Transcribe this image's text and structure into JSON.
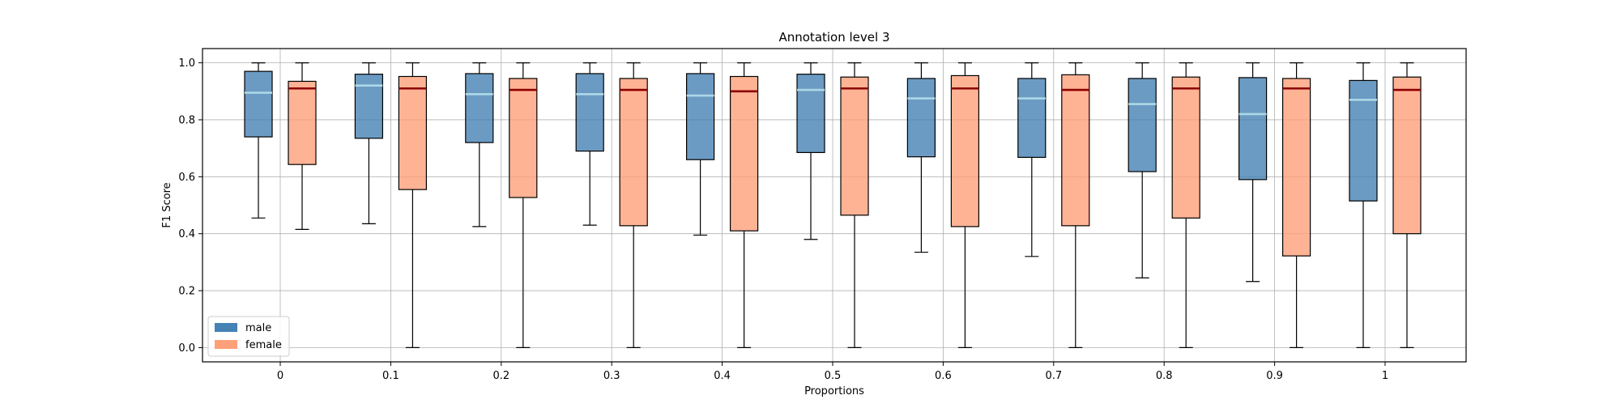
{
  "chart_data": {
    "type": "boxplot",
    "title": "Annotation level 3",
    "xlabel": "Proportions",
    "ylabel": "F1 Score",
    "ylim": [
      -0.05,
      1.05
    ],
    "yticks": [
      0.0,
      0.2,
      0.4,
      0.6,
      0.8,
      1.0
    ],
    "ytick_labels": [
      "0.0",
      "0.2",
      "0.4",
      "0.6",
      "0.8",
      "1.0"
    ],
    "categories": [
      "0",
      "0.1",
      "0.2",
      "0.3",
      "0.4",
      "0.5",
      "0.6",
      "0.7",
      "0.8",
      "0.9",
      "1"
    ],
    "grid": true,
    "legend_position": "lower-left",
    "series": [
      {
        "name": "male",
        "color": "#4682b4",
        "median_color": "#add8e6",
        "boxes": [
          {
            "whislo": 0.455,
            "q1": 0.74,
            "med": 0.895,
            "q3": 0.97,
            "whishi": 1.0
          },
          {
            "whislo": 0.435,
            "q1": 0.735,
            "med": 0.92,
            "q3": 0.96,
            "whishi": 1.0
          },
          {
            "whislo": 0.425,
            "q1": 0.72,
            "med": 0.89,
            "q3": 0.962,
            "whishi": 1.0
          },
          {
            "whislo": 0.43,
            "q1": 0.69,
            "med": 0.89,
            "q3": 0.962,
            "whishi": 1.0
          },
          {
            "whislo": 0.395,
            "q1": 0.66,
            "med": 0.885,
            "q3": 0.962,
            "whishi": 1.0
          },
          {
            "whislo": 0.38,
            "q1": 0.685,
            "med": 0.905,
            "q3": 0.96,
            "whishi": 1.0
          },
          {
            "whislo": 0.335,
            "q1": 0.67,
            "med": 0.875,
            "q3": 0.945,
            "whishi": 1.0
          },
          {
            "whislo": 0.32,
            "q1": 0.668,
            "med": 0.875,
            "q3": 0.945,
            "whishi": 1.0
          },
          {
            "whislo": 0.245,
            "q1": 0.618,
            "med": 0.855,
            "q3": 0.945,
            "whishi": 1.0
          },
          {
            "whislo": 0.232,
            "q1": 0.59,
            "med": 0.82,
            "q3": 0.948,
            "whishi": 1.0
          },
          {
            "whislo": 0.0,
            "q1": 0.515,
            "med": 0.87,
            "q3": 0.938,
            "whishi": 1.0
          }
        ]
      },
      {
        "name": "female",
        "color": "#ffa07a",
        "median_color": "#8b0000",
        "boxes": [
          {
            "whislo": 0.415,
            "q1": 0.643,
            "med": 0.91,
            "q3": 0.935,
            "whishi": 1.0
          },
          {
            "whislo": 0.0,
            "q1": 0.555,
            "med": 0.91,
            "q3": 0.952,
            "whishi": 1.0
          },
          {
            "whislo": 0.0,
            "q1": 0.527,
            "med": 0.905,
            "q3": 0.945,
            "whishi": 1.0
          },
          {
            "whislo": 0.0,
            "q1": 0.428,
            "med": 0.905,
            "q3": 0.945,
            "whishi": 1.0
          },
          {
            "whislo": 0.0,
            "q1": 0.41,
            "med": 0.9,
            "q3": 0.952,
            "whishi": 1.0
          },
          {
            "whislo": 0.0,
            "q1": 0.465,
            "med": 0.91,
            "q3": 0.95,
            "whishi": 1.0
          },
          {
            "whislo": 0.0,
            "q1": 0.425,
            "med": 0.91,
            "q3": 0.955,
            "whishi": 1.0
          },
          {
            "whislo": 0.0,
            "q1": 0.428,
            "med": 0.905,
            "q3": 0.958,
            "whishi": 1.0
          },
          {
            "whislo": 0.0,
            "q1": 0.455,
            "med": 0.91,
            "q3": 0.95,
            "whishi": 1.0
          },
          {
            "whislo": 0.0,
            "q1": 0.322,
            "med": 0.91,
            "q3": 0.945,
            "whishi": 1.0
          },
          {
            "whislo": 0.0,
            "q1": 0.4,
            "med": 0.905,
            "q3": 0.95,
            "whishi": 1.0
          }
        ]
      }
    ]
  }
}
